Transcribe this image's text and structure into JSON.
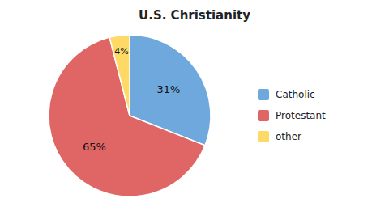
{
  "chart_data": {
    "type": "pie",
    "title": "U.S. Christianity",
    "categories": [
      "Catholic",
      "Protestant",
      "other"
    ],
    "values": [
      31,
      65,
      4
    ],
    "value_labels": [
      "31%",
      "65%",
      "4%"
    ],
    "colors": [
      "#6fa8dc",
      "#e06666",
      "#ffd966"
    ],
    "data_labels": true,
    "legend": "right"
  }
}
